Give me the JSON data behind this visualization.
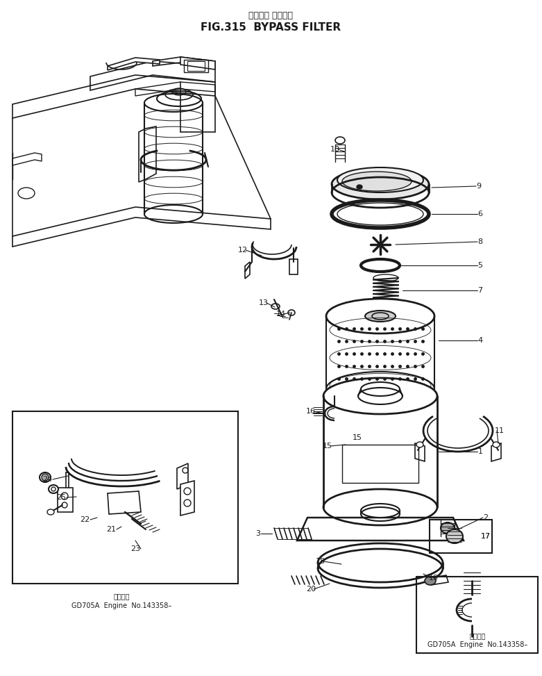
{
  "title_japanese": "バイパス フィルタ",
  "title_english": "FIG.315  BYPASS FILTER",
  "background_color": "#ffffff",
  "line_color": "#1a1a1a",
  "fig_width": 7.81,
  "fig_height": 9.73,
  "dpi": 100,
  "inset1_text_jp": "適用番号",
  "inset1_text_en": "GD705A  Engine  No.143358–",
  "inset2_text_jp": "適用番号",
  "inset2_text_en": "GD705A  Engine  No.143358–"
}
